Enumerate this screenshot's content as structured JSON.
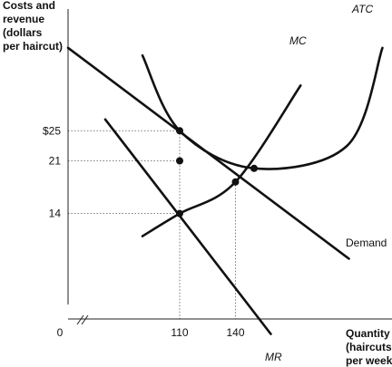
{
  "chart_data": {
    "type": "line",
    "ylabel": [
      "Costs and",
      "revenue",
      "(dollars",
      "per haircut)"
    ],
    "xlabel": [
      "Quantity",
      "(haircuts",
      "per week)"
    ],
    "origin_label": "0",
    "x_ticks": [
      {
        "value": 110,
        "label": "110"
      },
      {
        "value": 140,
        "label": "140"
      }
    ],
    "y_ticks": [
      {
        "value": 25,
        "label": "$25"
      },
      {
        "value": 21,
        "label": "21"
      },
      {
        "value": 14,
        "label": "14"
      }
    ],
    "xlim": [
      50,
      170
    ],
    "ylim": [
      0,
      38
    ],
    "axis_break": true,
    "grid": false,
    "series": [
      {
        "name": "Demand",
        "label_style": "plain",
        "points": [
          [
            50,
            36
          ],
          [
            110,
            21
          ],
          [
            140,
            18.2
          ],
          [
            201,
            8
          ]
        ]
      },
      {
        "name": "MR",
        "label_style": "italic",
        "points": [
          [
            70,
            26.5
          ],
          [
            110,
            14
          ],
          [
            159,
            -2
          ]
        ]
      },
      {
        "name": "MC",
        "label_style": "italic",
        "points": [
          [
            90,
            11
          ],
          [
            110,
            14
          ],
          [
            140,
            18.2
          ],
          [
            175,
            31
          ]
        ]
      },
      {
        "name": "ATC",
        "label_style": "italic",
        "points": [
          [
            90,
            35
          ],
          [
            110,
            25
          ],
          [
            150,
            20
          ],
          [
            200,
            23
          ],
          [
            219,
            36
          ]
        ]
      }
    ],
    "markers": [
      {
        "x": 110,
        "y": 25
      },
      {
        "x": 110,
        "y": 21
      },
      {
        "x": 110,
        "y": 14
      },
      {
        "x": 140,
        "y": 18.2
      },
      {
        "x": 150,
        "y": 20
      }
    ],
    "guides": [
      {
        "x": 110,
        "y": 25,
        "to": "y-axis"
      },
      {
        "x": 110,
        "y": 21,
        "to": "y-axis"
      },
      {
        "x": 110,
        "y": 14,
        "to": "y-axis"
      },
      {
        "x": 110,
        "y": 25,
        "to": "x-axis"
      },
      {
        "x": 140,
        "y": 18.2,
        "to": "x-axis"
      }
    ]
  }
}
